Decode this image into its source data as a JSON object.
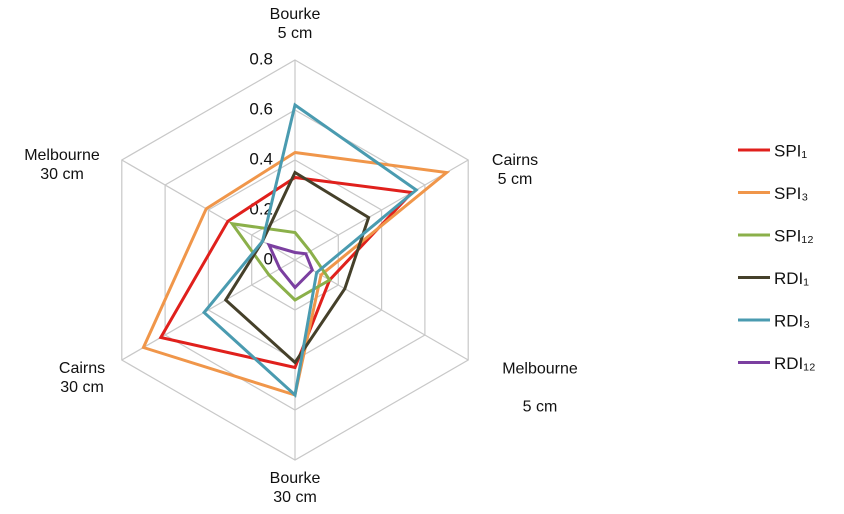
{
  "chart_data": {
    "type": "radar",
    "categories": [
      "Bourke\n5 cm",
      "Cairns\n5 cm",
      "Melbourne\n\n5 cm",
      "Bourke\n30 cm",
      "Cairns\n30 cm",
      "Melbourne\n30 cm"
    ],
    "rlim": [
      0,
      0.8
    ],
    "rticks": [
      0,
      0.2,
      0.4,
      0.6,
      0.8
    ],
    "grid": true,
    "series": [
      {
        "name": "SPI₁",
        "color": "#e0201c",
        "values": [
          0.33,
          0.54,
          0.16,
          0.43,
          0.62,
          0.31
        ]
      },
      {
        "name": "SPI₃",
        "color": "#f0964a",
        "values": [
          0.43,
          0.7,
          0.12,
          0.54,
          0.7,
          0.41
        ]
      },
      {
        "name": "SPI₁₂",
        "color": "#8bb04a",
        "values": [
          0.11,
          0.07,
          0.16,
          0.16,
          0.12,
          0.29
        ]
      },
      {
        "name": "RDI₁",
        "color": "#45402a",
        "values": [
          0.35,
          0.34,
          0.23,
          0.41,
          0.32,
          0.15
        ]
      },
      {
        "name": "RDI₃",
        "color": "#4a9bb0",
        "values": [
          0.62,
          0.56,
          0.1,
          0.54,
          0.42,
          0.15
        ]
      },
      {
        "name": "RDI₁₂",
        "color": "#7b3fa0",
        "values": [
          0.03,
          0.05,
          0.08,
          0.11,
          0.07,
          0.12
        ]
      }
    ]
  }
}
